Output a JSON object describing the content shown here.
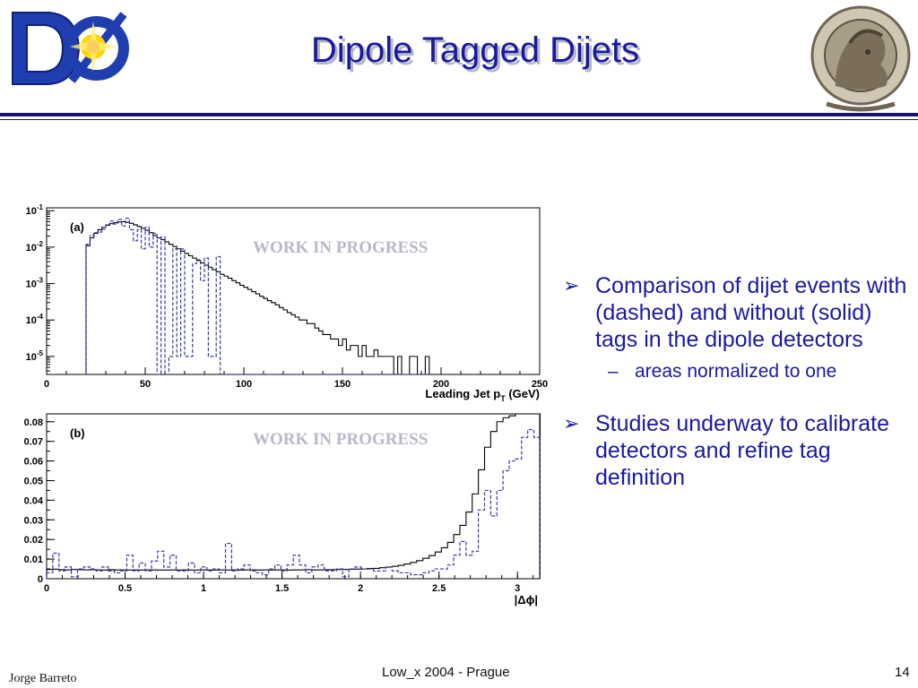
{
  "slide": {
    "title": "Dipole Tagged Dijets",
    "watermark": "WORK IN PROGRESS",
    "bullets": [
      "Comparison of dijet events with (dashed) and without (solid) tags in the dipole detectors",
      "Studies underway to calibrate detectors and refine tag definition"
    ],
    "sub_bullet": "areas normalized to one",
    "footer": {
      "left": "Jorge Barreto",
      "center": "Low_x 2004 - Prague",
      "right": "14"
    },
    "logo_left_text": "DØ",
    "colors": {
      "title": "#1a1a9c",
      "rule": "#12127a",
      "bullet_text": "#1a1aa0",
      "solid": "#000000",
      "dashed": "#3a3aa8"
    }
  },
  "chart_data": [
    {
      "type": "histogram",
      "panel_label": "(a)",
      "xlabel": "Leading Jet p",
      "xlabel_sub": "T",
      "xlabel_unit": "(GeV)",
      "xlim": [
        0,
        250
      ],
      "ylim": [
        3.2e-06,
        0.12
      ],
      "yscale": "log",
      "xticks": [
        0,
        50,
        100,
        150,
        200,
        250
      ],
      "yticks": [
        {
          "v": 0.1,
          "m": "10",
          "e": "-1"
        },
        {
          "v": 0.01,
          "m": "10",
          "e": "-2"
        },
        {
          "v": 0.001,
          "m": "10",
          "e": "-3"
        },
        {
          "v": 0.0001,
          "m": "10",
          "e": "-4"
        },
        {
          "v": 1e-05,
          "m": "10",
          "e": "-5"
        }
      ],
      "binwidth": 2,
      "series": [
        {
          "style": "solid",
          "x0": 20,
          "values": [
            0.011,
            0.018,
            0.024,
            0.03,
            0.035,
            0.04,
            0.044,
            0.047,
            0.049,
            0.05,
            0.048,
            0.045,
            0.041,
            0.037,
            0.033,
            0.029,
            0.025,
            0.021,
            0.018,
            0.016,
            0.014,
            0.012,
            0.0105,
            0.009,
            0.0078,
            0.0067,
            0.0058,
            0.005,
            0.0043,
            0.0037,
            0.0032,
            0.0028,
            0.0024,
            0.0021,
            0.0018,
            0.0016,
            0.0014,
            0.0012,
            0.00105,
            0.0009,
            0.00079,
            0.00069,
            0.0006,
            0.00052,
            0.00045,
            0.00039,
            0.00034,
            0.0003,
            0.00026,
            0.00022,
            0.00019,
            0.00016,
            0.00014,
            0.00012,
            0.0001,
            0.0001,
            8e-05,
            8e-05,
            6e-05,
            5e-05,
            4e-05,
            4e-05,
            3e-05,
            3e-05,
            2e-05,
            3e-05,
            1.5e-05,
            2e-05,
            2e-05,
            1e-05,
            2e-05,
            1e-05,
            1e-05,
            1.5e-05,
            1e-05,
            1e-05,
            1e-05,
            1e-05,
            0,
            1e-05,
            0,
            0,
            1e-05,
            1e-05,
            0,
            0,
            1e-05
          ]
        },
        {
          "style": "dashed",
          "x0": 20,
          "values": [
            0.012,
            0.021,
            0.025,
            0.026,
            0.031,
            0.042,
            0.052,
            0.043,
            0.058,
            0.038,
            0.062,
            0.03,
            0.015,
            0.03,
            0.009,
            0.035,
            0.01,
            0.024,
            0,
            0.019,
            0,
            1e-05,
            0.009,
            1e-05,
            0.009,
            1e-05,
            1e-05,
            0.0035,
            0.0045,
            0.0012,
            0.005,
            1e-05,
            1e-05,
            0.0055,
            0,
            0,
            0,
            0,
            0,
            0,
            0,
            0,
            0,
            0,
            0,
            0,
            0,
            0,
            0,
            0,
            0,
            0,
            0,
            0,
            0,
            0,
            0,
            0,
            0,
            0,
            0,
            0,
            0,
            0,
            0,
            0,
            0,
            0,
            0,
            0,
            0,
            0,
            0,
            0,
            0,
            0,
            0,
            0,
            0,
            0,
            0,
            0,
            0,
            0,
            0,
            0,
            0
          ]
        }
      ]
    },
    {
      "type": "histogram",
      "panel_label": "(b)",
      "xlabel": "|Δϕ|",
      "xlim": [
        0,
        3.1416
      ],
      "ylim": [
        0,
        0.084
      ],
      "yscale": "linear",
      "xticks": [
        0,
        0.5,
        1,
        1.5,
        2,
        2.5,
        3
      ],
      "yticks": [
        0,
        0.01,
        0.02,
        0.03,
        0.04,
        0.05,
        0.06,
        0.07,
        0.08
      ],
      "binwidth": 0.0393,
      "series": [
        {
          "style": "solid",
          "x0": 0,
          "values": [
            0.0047,
            0.0048,
            0.0046,
            0.0045,
            0.0047,
            0.0046,
            0.0045,
            0.0046,
            0.0045,
            0.0044,
            0.0046,
            0.0045,
            0.0045,
            0.0044,
            0.0045,
            0.0044,
            0.0045,
            0.0045,
            0.0044,
            0.0044,
            0.0045,
            0.0044,
            0.0045,
            0.0044,
            0.0044,
            0.0045,
            0.0044,
            0.0044,
            0.0045,
            0.0044,
            0.0045,
            0.0044,
            0.0045,
            0.0045,
            0.0044,
            0.0045,
            0.0044,
            0.0045,
            0.0045,
            0.0044,
            0.0045,
            0.0045,
            0.0046,
            0.0045,
            0.0045,
            0.0046,
            0.0046,
            0.0047,
            0.0047,
            0.0048,
            0.0049,
            0.005,
            0.0052,
            0.0053,
            0.0056,
            0.0059,
            0.0063,
            0.0068,
            0.0075,
            0.0083,
            0.0092,
            0.0104,
            0.0118,
            0.0136,
            0.0158,
            0.0185,
            0.0225,
            0.0272,
            0.034,
            0.0432,
            0.0555,
            0.067,
            0.075,
            0.08,
            0.082,
            0.083,
            0.084,
            0.084,
            0.084,
            0.084
          ]
        },
        {
          "style": "dashed",
          "x0": 0,
          "values": [
            0.003,
            0.013,
            0.004,
            0.006,
            0.001,
            0.005,
            0.006,
            0.005,
            0.004,
            0.006,
            0.004,
            0.003,
            0.004,
            0.012,
            0.004,
            0.008,
            0.004,
            0.009,
            0.014,
            0.006,
            0.012,
            0.004,
            0.004,
            0.008,
            0.003,
            0.006,
            0.004,
            0.005,
            0.003,
            0.018,
            0.004,
            0.005,
            0.007,
            0.004,
            0.003,
            0.002,
            0.005,
            0.007,
            0.004,
            0.007,
            0.012,
            0.007,
            0.003,
            0.006,
            0.007,
            0.004,
            0.004,
            0.005,
            0.001,
            0.005,
            0.006,
            0.005,
            0.005,
            0.004,
            0.004,
            0.006,
            0.004,
            0.003,
            0.003,
            0.002,
            0.002,
            0.003,
            0.004,
            0.005,
            0.005,
            0.007,
            0.012,
            0.019,
            0.012,
            0.014,
            0.035,
            0.045,
            0.032,
            0.045,
            0.055,
            0.06,
            0.061,
            0.072,
            0.076,
            0.072
          ]
        }
      ]
    }
  ]
}
